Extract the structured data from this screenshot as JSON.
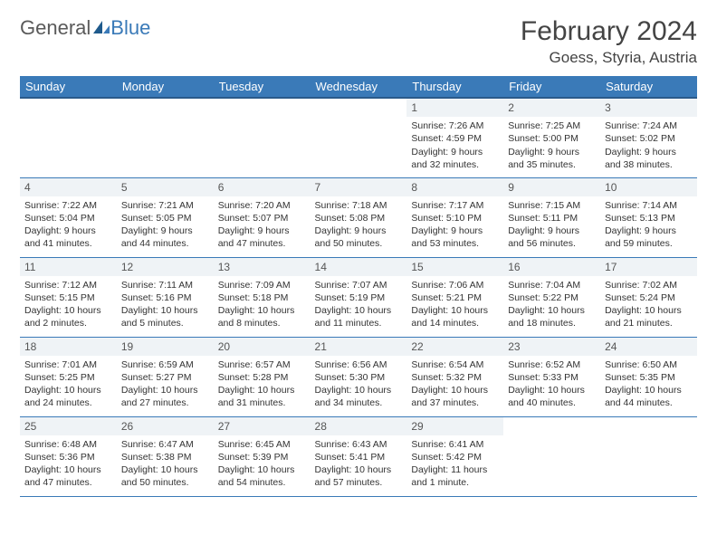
{
  "logo": {
    "text1": "General",
    "text2": "Blue"
  },
  "title": "February 2024",
  "location": "Goess, Styria, Austria",
  "colors": {
    "header_bg": "#3a7ab8",
    "header_text": "#ffffff",
    "grid_border": "#3a7ab8",
    "daynum_bg": "#eff3f6",
    "body_text": "#333333",
    "page_bg": "#ffffff"
  },
  "weekdays": [
    "Sunday",
    "Monday",
    "Tuesday",
    "Wednesday",
    "Thursday",
    "Friday",
    "Saturday"
  ],
  "weeks": [
    [
      null,
      null,
      null,
      null,
      {
        "day": "1",
        "sunrise": "Sunrise: 7:26 AM",
        "sunset": "Sunset: 4:59 PM",
        "daylight": "Daylight: 9 hours and 32 minutes."
      },
      {
        "day": "2",
        "sunrise": "Sunrise: 7:25 AM",
        "sunset": "Sunset: 5:00 PM",
        "daylight": "Daylight: 9 hours and 35 minutes."
      },
      {
        "day": "3",
        "sunrise": "Sunrise: 7:24 AM",
        "sunset": "Sunset: 5:02 PM",
        "daylight": "Daylight: 9 hours and 38 minutes."
      }
    ],
    [
      {
        "day": "4",
        "sunrise": "Sunrise: 7:22 AM",
        "sunset": "Sunset: 5:04 PM",
        "daylight": "Daylight: 9 hours and 41 minutes."
      },
      {
        "day": "5",
        "sunrise": "Sunrise: 7:21 AM",
        "sunset": "Sunset: 5:05 PM",
        "daylight": "Daylight: 9 hours and 44 minutes."
      },
      {
        "day": "6",
        "sunrise": "Sunrise: 7:20 AM",
        "sunset": "Sunset: 5:07 PM",
        "daylight": "Daylight: 9 hours and 47 minutes."
      },
      {
        "day": "7",
        "sunrise": "Sunrise: 7:18 AM",
        "sunset": "Sunset: 5:08 PM",
        "daylight": "Daylight: 9 hours and 50 minutes."
      },
      {
        "day": "8",
        "sunrise": "Sunrise: 7:17 AM",
        "sunset": "Sunset: 5:10 PM",
        "daylight": "Daylight: 9 hours and 53 minutes."
      },
      {
        "day": "9",
        "sunrise": "Sunrise: 7:15 AM",
        "sunset": "Sunset: 5:11 PM",
        "daylight": "Daylight: 9 hours and 56 minutes."
      },
      {
        "day": "10",
        "sunrise": "Sunrise: 7:14 AM",
        "sunset": "Sunset: 5:13 PM",
        "daylight": "Daylight: 9 hours and 59 minutes."
      }
    ],
    [
      {
        "day": "11",
        "sunrise": "Sunrise: 7:12 AM",
        "sunset": "Sunset: 5:15 PM",
        "daylight": "Daylight: 10 hours and 2 minutes."
      },
      {
        "day": "12",
        "sunrise": "Sunrise: 7:11 AM",
        "sunset": "Sunset: 5:16 PM",
        "daylight": "Daylight: 10 hours and 5 minutes."
      },
      {
        "day": "13",
        "sunrise": "Sunrise: 7:09 AM",
        "sunset": "Sunset: 5:18 PM",
        "daylight": "Daylight: 10 hours and 8 minutes."
      },
      {
        "day": "14",
        "sunrise": "Sunrise: 7:07 AM",
        "sunset": "Sunset: 5:19 PM",
        "daylight": "Daylight: 10 hours and 11 minutes."
      },
      {
        "day": "15",
        "sunrise": "Sunrise: 7:06 AM",
        "sunset": "Sunset: 5:21 PM",
        "daylight": "Daylight: 10 hours and 14 minutes."
      },
      {
        "day": "16",
        "sunrise": "Sunrise: 7:04 AM",
        "sunset": "Sunset: 5:22 PM",
        "daylight": "Daylight: 10 hours and 18 minutes."
      },
      {
        "day": "17",
        "sunrise": "Sunrise: 7:02 AM",
        "sunset": "Sunset: 5:24 PM",
        "daylight": "Daylight: 10 hours and 21 minutes."
      }
    ],
    [
      {
        "day": "18",
        "sunrise": "Sunrise: 7:01 AM",
        "sunset": "Sunset: 5:25 PM",
        "daylight": "Daylight: 10 hours and 24 minutes."
      },
      {
        "day": "19",
        "sunrise": "Sunrise: 6:59 AM",
        "sunset": "Sunset: 5:27 PM",
        "daylight": "Daylight: 10 hours and 27 minutes."
      },
      {
        "day": "20",
        "sunrise": "Sunrise: 6:57 AM",
        "sunset": "Sunset: 5:28 PM",
        "daylight": "Daylight: 10 hours and 31 minutes."
      },
      {
        "day": "21",
        "sunrise": "Sunrise: 6:56 AM",
        "sunset": "Sunset: 5:30 PM",
        "daylight": "Daylight: 10 hours and 34 minutes."
      },
      {
        "day": "22",
        "sunrise": "Sunrise: 6:54 AM",
        "sunset": "Sunset: 5:32 PM",
        "daylight": "Daylight: 10 hours and 37 minutes."
      },
      {
        "day": "23",
        "sunrise": "Sunrise: 6:52 AM",
        "sunset": "Sunset: 5:33 PM",
        "daylight": "Daylight: 10 hours and 40 minutes."
      },
      {
        "day": "24",
        "sunrise": "Sunrise: 6:50 AM",
        "sunset": "Sunset: 5:35 PM",
        "daylight": "Daylight: 10 hours and 44 minutes."
      }
    ],
    [
      {
        "day": "25",
        "sunrise": "Sunrise: 6:48 AM",
        "sunset": "Sunset: 5:36 PM",
        "daylight": "Daylight: 10 hours and 47 minutes."
      },
      {
        "day": "26",
        "sunrise": "Sunrise: 6:47 AM",
        "sunset": "Sunset: 5:38 PM",
        "daylight": "Daylight: 10 hours and 50 minutes."
      },
      {
        "day": "27",
        "sunrise": "Sunrise: 6:45 AM",
        "sunset": "Sunset: 5:39 PM",
        "daylight": "Daylight: 10 hours and 54 minutes."
      },
      {
        "day": "28",
        "sunrise": "Sunrise: 6:43 AM",
        "sunset": "Sunset: 5:41 PM",
        "daylight": "Daylight: 10 hours and 57 minutes."
      },
      {
        "day": "29",
        "sunrise": "Sunrise: 6:41 AM",
        "sunset": "Sunset: 5:42 PM",
        "daylight": "Daylight: 11 hours and 1 minute."
      },
      null,
      null
    ]
  ]
}
